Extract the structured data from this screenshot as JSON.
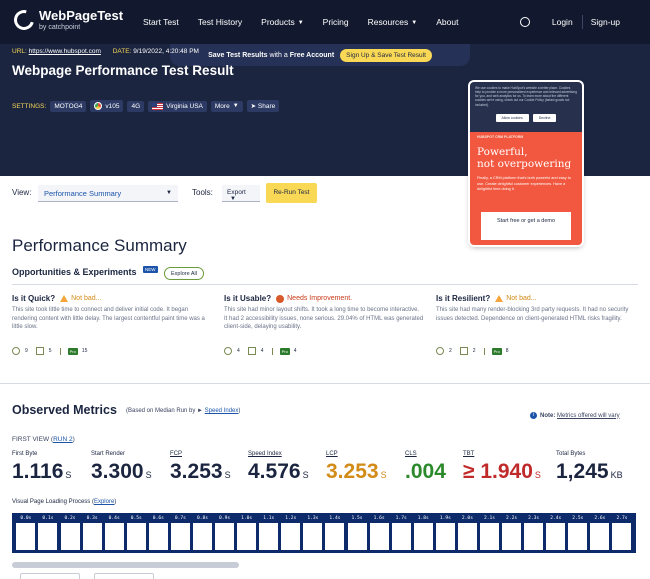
{
  "nav": {
    "logo_title": "WebPageTest",
    "logo_sub": "by catchpoint",
    "links": [
      "Start Test",
      "Test History",
      "Products",
      "Pricing",
      "Resources",
      "About"
    ],
    "login": "Login",
    "signup": "Sign-up"
  },
  "promo": {
    "text_bold": "Save Test Results",
    "text_mid": "with a",
    "text_bold2": "Free Account",
    "button": "Sign Up & Save Test Result"
  },
  "result": {
    "url_label": "URL:",
    "url": "https://www.hubspot.com",
    "date_label": "DATE:",
    "date": "9/19/2022, 4:20:48 PM",
    "title": "Webpage Performance Test Result",
    "settings_label": "SETTINGS:",
    "device": "MOTOG4",
    "browser": "v105",
    "network": "4G",
    "location": "Virginia USA",
    "more": "More",
    "share": "Share"
  },
  "ad": {
    "cookie": "We use cookies to make HubSpot's website a better place. Cookies help to provide a more personalized experience and relevant advertising for you, and web analytics for us. To learn more about the different cookies we're using, check out our Cookie Policy (baked goods not included).",
    "allow": "Allow cookies",
    "decline": "Decline",
    "kicker": "HUBSPOT CRM PLATFORM",
    "headline1": "Powerful,",
    "headline2": "not overpowering",
    "body": "Finally, a CRM platform that's both powerful and easy to use. Create delightful customer experiences. Have a delightful time doing it.",
    "cta": "Start free or get a demo"
  },
  "toolbar": {
    "view_label": "View:",
    "view_value": "Performance Summary",
    "tools_label": "Tools:",
    "export": "Export",
    "rerun": "Re-Run Test"
  },
  "summary": {
    "title": "Performance Summary",
    "opp_title": "Opportunities & Experiments",
    "new_badge": "NEW",
    "explore": "Explore All",
    "items": [
      {
        "q": "Is it Quick?",
        "verdict": "Not bad...",
        "text": "This site took little time to connect and deliver initial code. It began rendering content with little delay. The largest contentful paint time was a little slow.",
        "c1": "9",
        "c2": "5",
        "c3": "15"
      },
      {
        "q": "Is it Usable?",
        "verdict": "Needs Improvement.",
        "text": "This site had minor layout shifts. It took a long time to become interactive. It had 2 accessibility issues, none serious. 29.04% of HTML was generated client-side, delaying usability.",
        "c1": "4",
        "c2": "4",
        "c3": "4"
      },
      {
        "q": "Is it Resilient?",
        "verdict": "Not bad...",
        "text": "This site had many render-blocking 3rd party requests. It had no security issues detected. Dependence on client-generated HTML risks fragility.",
        "c1": "2",
        "c2": "2",
        "c3": "8"
      }
    ],
    "pro": "Pro"
  },
  "metrics": {
    "title": "Observed Metrics",
    "sub_prefix": "(Based on Median Run by",
    "sub_link": "Speed Index",
    "sub_suffix": ")",
    "note_bold": "Note:",
    "note_link": "Metrics offered will vary",
    "first_view": "FIRST VIEW",
    "run": "RUN 2",
    "items": [
      {
        "label": "First Byte",
        "value": "1.116",
        "unit": "S"
      },
      {
        "label": "Start Render",
        "value": "3.300",
        "unit": "S"
      },
      {
        "label": "FCP",
        "value": "3.253",
        "unit": "S"
      },
      {
        "label": "Speed Index",
        "value": "4.576",
        "unit": "S"
      },
      {
        "label": "LCP",
        "value": "3.253",
        "unit": "S"
      },
      {
        "label": "CLS",
        "value": ".004",
        "unit": ""
      },
      {
        "label": "TBT",
        "value": "≥ 1.940",
        "unit": "S"
      },
      {
        "label": "Total Bytes",
        "value": "1,245",
        "unit": "KB"
      }
    ],
    "vplp_label": "Visual Page Loading Process",
    "vplp_link": "Explore",
    "frames": [
      "0.0s",
      "0.1s",
      "0.2s",
      "0.3s",
      "0.4s",
      "0.5s",
      "0.6s",
      "0.7s",
      "0.8s",
      "0.9s",
      "1.0s",
      "1.1s",
      "1.2s",
      "1.3s",
      "1.4s",
      "1.5s",
      "1.6s",
      "1.7s",
      "1.8s",
      "1.9s",
      "2.0s",
      "2.1s",
      "2.2s",
      "2.3s",
      "2.4s",
      "2.5s",
      "2.6s",
      "2.7s"
    ]
  },
  "colors": {
    "nav_bg": "#12192e",
    "hero_bg": "#1b2540",
    "accent_yellow": "#f9d856",
    "ad_orange": "#f1583f",
    "lcp": "#d28b16",
    "cls": "#2c8a2c",
    "tbt": "#c02a2a",
    "filmstrip": "#0d2b6b"
  }
}
